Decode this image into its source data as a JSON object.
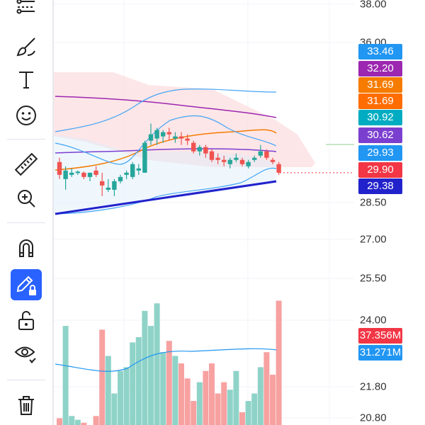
{
  "toolbar": {
    "tools": [
      {
        "name": "trend-line-tool",
        "icon": "trendlines-icon",
        "active": false
      },
      {
        "name": "brush-tool",
        "icon": "brush-icon",
        "active": false
      },
      {
        "name": "text-tool",
        "icon": "text-icon",
        "active": false
      },
      {
        "name": "emoji-tool",
        "icon": "smiley-icon",
        "active": false
      },
      {
        "name": "measure-tool",
        "icon": "ruler-icon",
        "active": false
      },
      {
        "name": "zoom-tool",
        "icon": "zoom-in-icon",
        "active": false
      },
      {
        "name": "magnet-tool",
        "icon": "magnet-icon",
        "active": false
      },
      {
        "name": "lock-drawing-tool",
        "icon": "pencil-lock-icon",
        "active": true
      },
      {
        "name": "lock-all-tool",
        "icon": "unlock-icon",
        "active": false
      },
      {
        "name": "hide-drawings-tool",
        "icon": "eye-icon",
        "active": false
      },
      {
        "name": "delete-tool",
        "icon": "trash-icon",
        "active": false
      }
    ]
  },
  "price_axis": {
    "labels": [
      "38.00",
      "36.00",
      "28.50",
      "27.00",
      "25.50",
      "24.00",
      "21.80",
      "20.80"
    ]
  },
  "price_tags": [
    {
      "text": "33.46",
      "color": "#2196f3"
    },
    {
      "text": "32.20",
      "color": "#9c27b0"
    },
    {
      "text": "31.69",
      "color": "#f57c00"
    },
    {
      "text": "31.69",
      "color": "#ff6d00"
    },
    {
      "text": "30.92",
      "color": "#00acc1"
    },
    {
      "text": "30.62",
      "color": "#7b3fd0"
    },
    {
      "text": "29.93",
      "color": "#2196f3"
    },
    {
      "text": "29.90",
      "color": "#f23645"
    },
    {
      "text": "29.38",
      "color": "#2222cc"
    }
  ],
  "volume_tags": [
    {
      "text": "37.356M",
      "color": "#f23645"
    },
    {
      "text": "31.271M",
      "color": "#2196f3"
    }
  ],
  "colors": {
    "up": "#26a69a",
    "down": "#ef5350",
    "up_vol": "#8fd3c8",
    "down_vol": "#f7a1a1",
    "bb_band": "#42a5f5",
    "bb_mid": "#42a5f5",
    "ma_purple": "#9c27b0",
    "ma_orange": "#f57c00",
    "ma_violet": "#7b3fd0",
    "trend": "#2222cc",
    "vol_ma": "#2196f3",
    "last_price_line": "#f23645"
  },
  "chart_data": {
    "type": "candlestick",
    "candles": [
      {
        "o": 30.4,
        "h": 30.6,
        "l": 29.6,
        "c": 29.8
      },
      {
        "o": 29.6,
        "h": 30.2,
        "l": 29.1,
        "c": 30.0
      },
      {
        "o": 29.8,
        "h": 30.1,
        "l": 29.7,
        "c": 29.9
      },
      {
        "o": 29.9,
        "h": 30.0,
        "l": 29.8,
        "c": 29.95
      },
      {
        "o": 29.9,
        "h": 29.95,
        "l": 29.6,
        "c": 29.7
      },
      {
        "o": 29.7,
        "h": 29.9,
        "l": 29.5,
        "c": 29.9
      },
      {
        "o": 30.0,
        "h": 30.2,
        "l": 29.7,
        "c": 29.8
      },
      {
        "o": 29.5,
        "h": 29.9,
        "l": 28.8,
        "c": 29.3
      },
      {
        "o": 29.1,
        "h": 29.6,
        "l": 29.0,
        "c": 29.2
      },
      {
        "o": 29.1,
        "h": 29.6,
        "l": 28.8,
        "c": 29.5
      },
      {
        "o": 29.5,
        "h": 29.8,
        "l": 29.4,
        "c": 29.7
      },
      {
        "o": 29.8,
        "h": 30.0,
        "l": 29.6,
        "c": 29.9
      },
      {
        "o": 29.7,
        "h": 30.4,
        "l": 29.6,
        "c": 30.3
      },
      {
        "o": 30.0,
        "h": 30.3,
        "l": 29.8,
        "c": 30.1
      },
      {
        "o": 29.9,
        "h": 31.4,
        "l": 29.9,
        "c": 31.3
      },
      {
        "o": 31.4,
        "h": 32.2,
        "l": 31.2,
        "c": 31.7
      },
      {
        "o": 31.5,
        "h": 32.0,
        "l": 31.2,
        "c": 31.9
      },
      {
        "o": 31.6,
        "h": 31.9,
        "l": 31.3,
        "c": 31.8
      },
      {
        "o": 31.8,
        "h": 32.0,
        "l": 31.4,
        "c": 31.7
      },
      {
        "o": 31.5,
        "h": 31.8,
        "l": 31.3,
        "c": 31.6
      },
      {
        "o": 31.6,
        "h": 31.8,
        "l": 31.2,
        "c": 31.5
      },
      {
        "o": 31.5,
        "h": 31.7,
        "l": 31.2,
        "c": 31.4
      },
      {
        "o": 31.3,
        "h": 31.4,
        "l": 30.8,
        "c": 30.9
      },
      {
        "o": 30.9,
        "h": 31.2,
        "l": 30.7,
        "c": 31.1
      },
      {
        "o": 31.1,
        "h": 31.2,
        "l": 30.6,
        "c": 30.8
      },
      {
        "o": 30.9,
        "h": 31.0,
        "l": 30.4,
        "c": 30.5
      },
      {
        "o": 30.6,
        "h": 30.8,
        "l": 30.3,
        "c": 30.5
      },
      {
        "o": 30.5,
        "h": 30.7,
        "l": 30.2,
        "c": 30.4
      },
      {
        "o": 30.3,
        "h": 30.6,
        "l": 30.1,
        "c": 30.5
      },
      {
        "o": 30.5,
        "h": 30.8,
        "l": 30.4,
        "c": 30.6
      },
      {
        "o": 30.5,
        "h": 30.6,
        "l": 30.2,
        "c": 30.3
      },
      {
        "o": 30.2,
        "h": 30.5,
        "l": 30.1,
        "c": 30.4
      },
      {
        "o": 30.5,
        "h": 30.7,
        "l": 30.4,
        "c": 30.6
      },
      {
        "o": 30.7,
        "h": 31.2,
        "l": 30.6,
        "c": 30.9
      },
      {
        "o": 30.9,
        "h": 31.0,
        "l": 30.5,
        "c": 30.6
      },
      {
        "o": 30.5,
        "h": 30.6,
        "l": 30.3,
        "c": 30.4
      },
      {
        "o": 30.3,
        "h": 30.4,
        "l": 29.8,
        "c": 29.9
      }
    ],
    "volumes": [
      21.7,
      34.0,
      22.0,
      21.5,
      21.1,
      20.8,
      22.0,
      33.5,
      30.0,
      25.0,
      28.0,
      28.5,
      31.8,
      32.5,
      36.0,
      34.0,
      37.0,
      30.5,
      32.0,
      30.0,
      29.0,
      27.0,
      24.0,
      26.5,
      28.0,
      29.0,
      25.0,
      26.5,
      25.5,
      28.0,
      22.5,
      24.0,
      25.0,
      28.5,
      30.5,
      27.5,
      37.356
    ],
    "volume_ma_last": 31.271,
    "last_price": 29.9
  }
}
